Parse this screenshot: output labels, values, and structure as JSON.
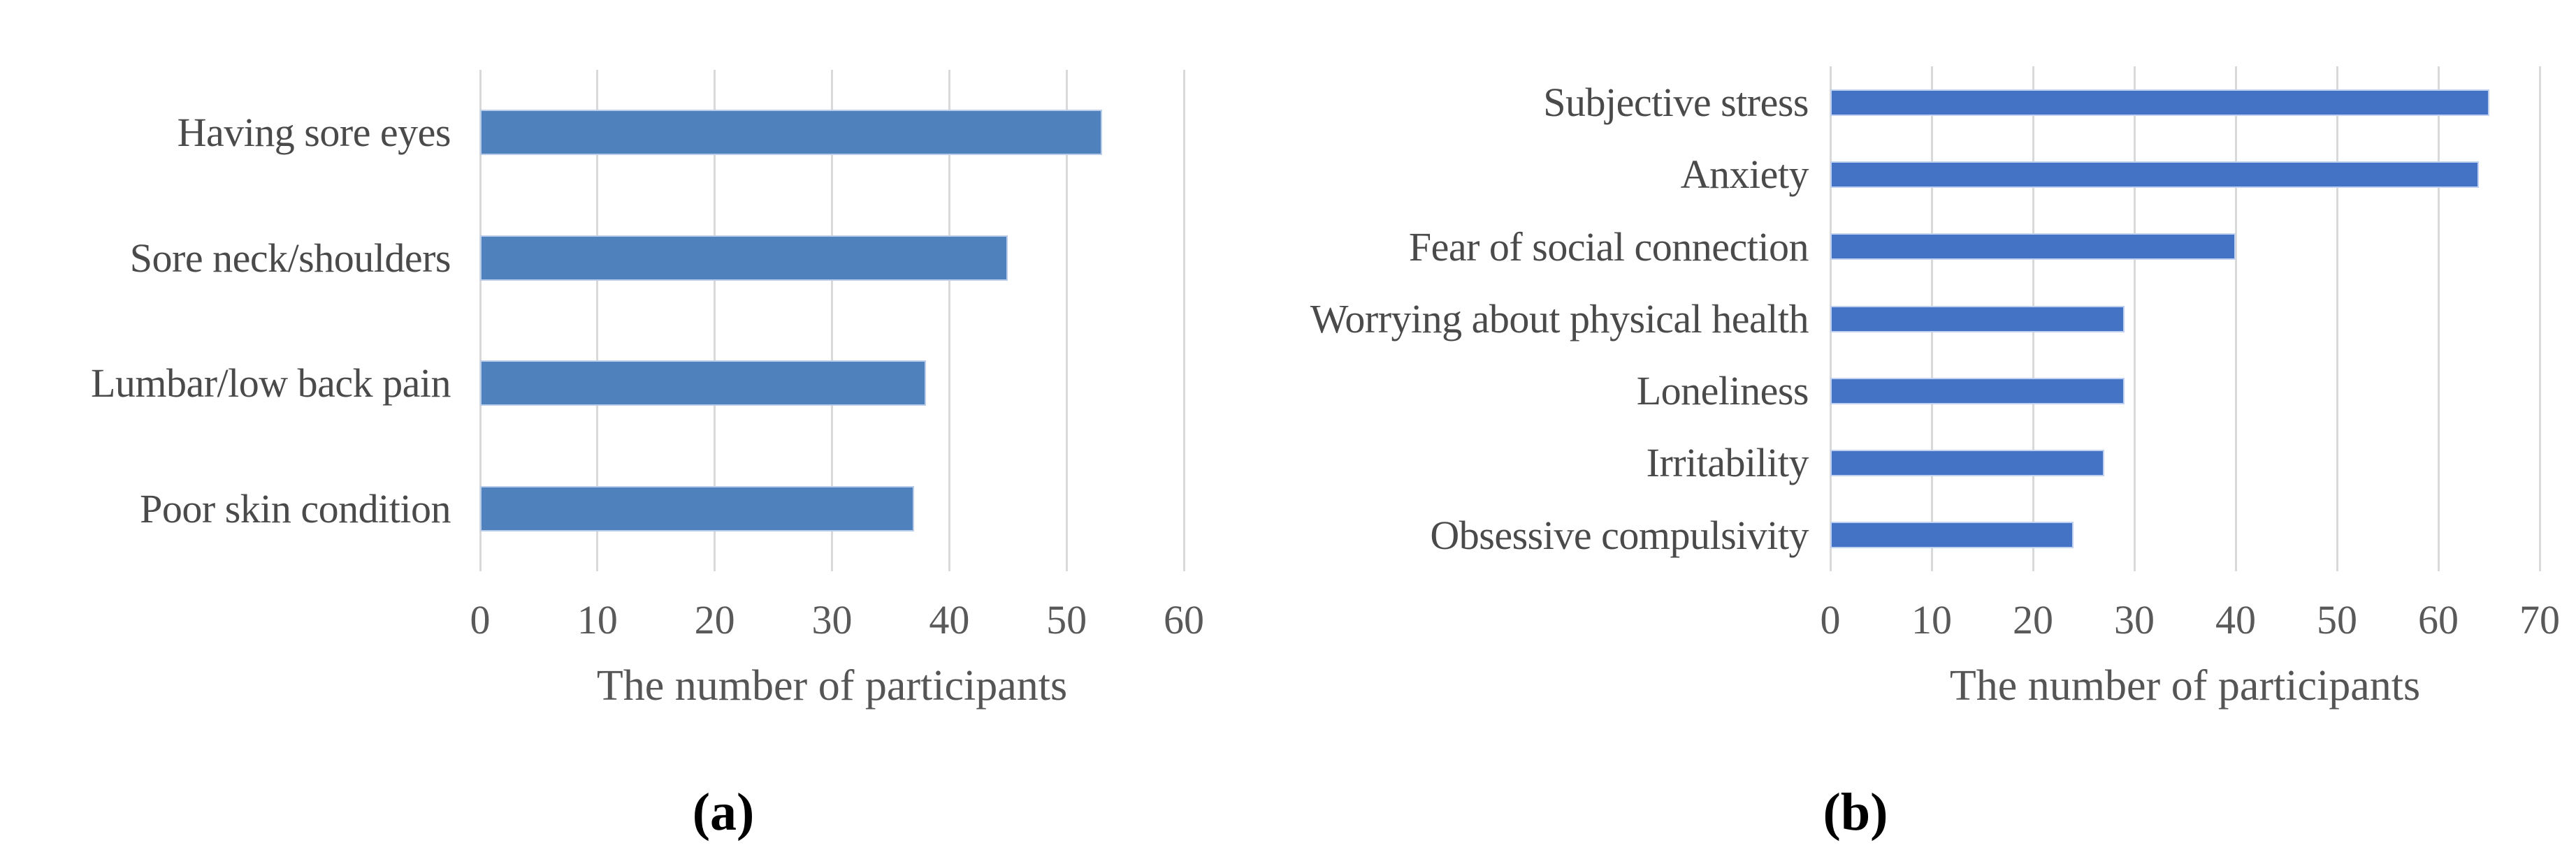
{
  "figure": {
    "captions": {
      "a": "(a)",
      "b": "(b)"
    },
    "background_color": "#ffffff",
    "gridline_color": "#d9d9d9",
    "label_text_color": "#4a4a4a",
    "tick_text_color": "#595959"
  },
  "chart_data": [
    {
      "type": "bar",
      "orientation": "horizontal",
      "panel": "a",
      "title": "",
      "categories": [
        "Having sore eyes",
        "Sore neck/shoulders",
        "Lumbar/low back pain",
        "Poor skin condition"
      ],
      "values": [
        53,
        45,
        38,
        37
      ],
      "xlabel": "The number of participants",
      "ylabel": "",
      "xlim": [
        0,
        60
      ],
      "xticks": [
        0,
        10,
        20,
        30,
        40,
        50,
        60
      ],
      "grid": "vertical",
      "legend": "none",
      "bar_color": "#4f81bd",
      "bar_border_color": "#b9cdea"
    },
    {
      "type": "bar",
      "orientation": "horizontal",
      "panel": "b",
      "title": "",
      "categories": [
        "Subjective stress",
        "Anxiety",
        "Fear of social connection",
        "Worrying about physical health",
        "Loneliness",
        "Irritability",
        "Obsessive compulsivity"
      ],
      "values": [
        65,
        64,
        40,
        29,
        29,
        27,
        24
      ],
      "xlabel": "The number of participants",
      "ylabel": "",
      "xlim": [
        0,
        70
      ],
      "xticks": [
        0,
        10,
        20,
        30,
        40,
        50,
        60,
        70
      ],
      "grid": "vertical",
      "legend": "none",
      "bar_color": "#4472c4",
      "bar_border_color": "#bfd0f0"
    }
  ]
}
